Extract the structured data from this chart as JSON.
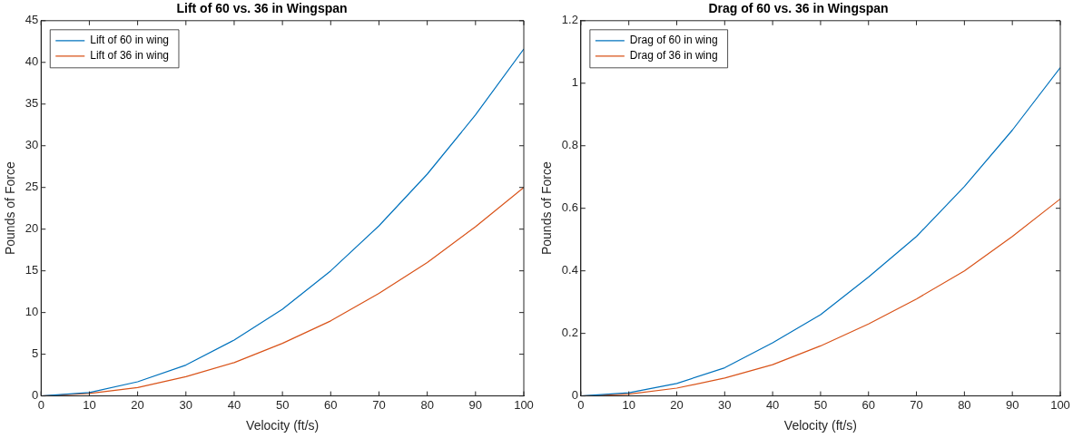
{
  "chart_data": [
    {
      "type": "line",
      "title": "Lift of 60 vs. 36 in Wingspan",
      "xlabel": "Velocity (ft/s)",
      "ylabel": "Pounds of Force",
      "x": [
        0,
        10,
        20,
        30,
        40,
        50,
        60,
        70,
        80,
        90,
        100
      ],
      "series": [
        {
          "name": "Lift of 60 in wing",
          "color": "#0072bd",
          "values": [
            0,
            0.4,
            1.7,
            3.7,
            6.7,
            10.4,
            15.0,
            20.4,
            26.6,
            33.7,
            41.6
          ]
        },
        {
          "name": "Lift of 36 in wing",
          "color": "#d95319",
          "values": [
            0,
            0.3,
            1.0,
            2.3,
            4.0,
            6.3,
            9.0,
            12.3,
            16.0,
            20.3,
            25.0
          ]
        }
      ],
      "xlim": [
        0,
        100
      ],
      "xticks": [
        0,
        10,
        20,
        30,
        40,
        50,
        60,
        70,
        80,
        90,
        100
      ],
      "ylim": [
        0,
        45
      ],
      "yticks": [
        0,
        5,
        10,
        15,
        20,
        25,
        30,
        35,
        40,
        45
      ],
      "grid": false,
      "legend": "top left",
      "marker": "none",
      "line_style": "solid"
    },
    {
      "type": "line",
      "title": "Drag of 60 vs. 36 in Wingspan",
      "xlabel": "Velocity (ft/s)",
      "ylabel": "Pounds of Force",
      "x": [
        0,
        10,
        20,
        30,
        40,
        50,
        60,
        70,
        80,
        90,
        100
      ],
      "series": [
        {
          "name": "Drag of 60 in wing",
          "color": "#0072bd",
          "values": [
            0,
            0.01,
            0.04,
            0.09,
            0.17,
            0.26,
            0.38,
            0.51,
            0.67,
            0.85,
            1.05
          ]
        },
        {
          "name": "Drag of 36 in wing",
          "color": "#d95319",
          "values": [
            0,
            0.006,
            0.025,
            0.057,
            0.1,
            0.16,
            0.23,
            0.31,
            0.4,
            0.51,
            0.63
          ]
        }
      ],
      "xlim": [
        0,
        100
      ],
      "xticks": [
        0,
        10,
        20,
        30,
        40,
        50,
        60,
        70,
        80,
        90,
        100
      ],
      "ylim": [
        0,
        1.2
      ],
      "yticks": [
        0,
        0.2,
        0.4,
        0.6,
        0.8,
        1,
        1.2
      ],
      "grid": false,
      "legend": "top left",
      "marker": "none",
      "line_style": "solid"
    }
  ]
}
